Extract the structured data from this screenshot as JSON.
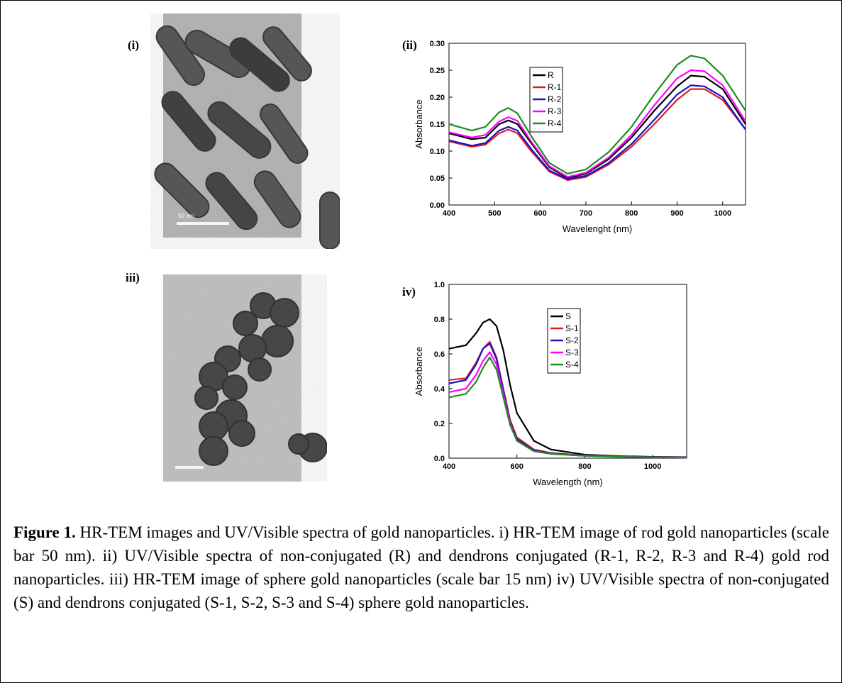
{
  "panel_labels": [
    "(i)",
    "(ii)",
    "iii)",
    "iv)"
  ],
  "scale_bars": [
    "50 nm"
  ],
  "chart_data": [
    {
      "type": "line",
      "xlabel": "Wavelenght (nm)",
      "ylabel": "Absorbance",
      "x": [
        400,
        450,
        480,
        510,
        530,
        550,
        580,
        620,
        660,
        700,
        750,
        800,
        850,
        900,
        930,
        960,
        1000,
        1050
      ],
      "series": [
        {
          "name": "R",
          "color": "#000000",
          "values": [
            0.133,
            0.122,
            0.125,
            0.15,
            0.157,
            0.15,
            0.115,
            0.07,
            0.05,
            0.058,
            0.085,
            0.125,
            0.175,
            0.22,
            0.24,
            0.238,
            0.215,
            0.15
          ]
        },
        {
          "name": "R-1",
          "color": "#e31a1c",
          "values": [
            0.118,
            0.108,
            0.112,
            0.133,
            0.14,
            0.133,
            0.1,
            0.062,
            0.046,
            0.052,
            0.075,
            0.108,
            0.15,
            0.195,
            0.215,
            0.215,
            0.195,
            0.14
          ]
        },
        {
          "name": "R-2",
          "color": "#1414c8",
          "values": [
            0.12,
            0.11,
            0.115,
            0.138,
            0.145,
            0.138,
            0.104,
            0.064,
            0.048,
            0.054,
            0.078,
            0.113,
            0.158,
            0.205,
            0.222,
            0.22,
            0.2,
            0.14
          ]
        },
        {
          "name": "R-3",
          "color": "#ff00ff",
          "values": [
            0.135,
            0.125,
            0.13,
            0.155,
            0.163,
            0.156,
            0.118,
            0.072,
            0.052,
            0.06,
            0.088,
            0.13,
            0.185,
            0.235,
            0.25,
            0.248,
            0.222,
            0.155
          ]
        },
        {
          "name": "R-4",
          "color": "#1e8c1e",
          "values": [
            0.15,
            0.138,
            0.145,
            0.172,
            0.18,
            0.17,
            0.128,
            0.078,
            0.058,
            0.066,
            0.098,
            0.145,
            0.205,
            0.26,
            0.277,
            0.272,
            0.24,
            0.175
          ]
        }
      ],
      "xlim": [
        400,
        1050
      ],
      "ylim": [
        0,
        0.3
      ],
      "xticks": [
        400,
        500,
        600,
        700,
        800,
        900,
        1000
      ],
      "yticks": [
        {
          "value": 0,
          "label": "0.00"
        },
        0.05,
        {
          "value": 0.1,
          "label": "0.10"
        },
        0.15,
        {
          "value": 0.2,
          "label": "0.20"
        },
        0.25,
        {
          "value": 0.3,
          "label": "0.30"
        }
      ],
      "legend": "upper center"
    },
    {
      "type": "line",
      "xlabel": "Wavelength (nm)",
      "ylabel": "Absorbance",
      "x": [
        400,
        450,
        480,
        500,
        520,
        540,
        560,
        580,
        600,
        650,
        700,
        800,
        900,
        1000,
        1100
      ],
      "series": [
        {
          "name": "S",
          "color": "#000000",
          "values": [
            0.63,
            0.65,
            0.72,
            0.78,
            0.8,
            0.76,
            0.62,
            0.42,
            0.26,
            0.1,
            0.05,
            0.02,
            0.012,
            0.008,
            0.006
          ]
        },
        {
          "name": "S-1",
          "color": "#e31a1c",
          "values": [
            0.45,
            0.46,
            0.55,
            0.63,
            0.67,
            0.58,
            0.4,
            0.22,
            0.12,
            0.05,
            0.03,
            0.015,
            0.01,
            0.006,
            0.005
          ]
        },
        {
          "name": "S-2",
          "color": "#1414c8",
          "values": [
            0.43,
            0.45,
            0.54,
            0.63,
            0.66,
            0.57,
            0.39,
            0.21,
            0.11,
            0.045,
            0.028,
            0.015,
            0.01,
            0.006,
            0.005
          ]
        },
        {
          "name": "S-3",
          "color": "#ff00ff",
          "values": [
            0.38,
            0.4,
            0.48,
            0.56,
            0.61,
            0.54,
            0.37,
            0.2,
            0.1,
            0.04,
            0.025,
            0.014,
            0.009,
            0.005,
            0.004
          ]
        },
        {
          "name": "S-4",
          "color": "#1e8c1e",
          "values": [
            0.35,
            0.37,
            0.44,
            0.52,
            0.58,
            0.51,
            0.35,
            0.19,
            0.1,
            0.04,
            0.025,
            0.013,
            0.008,
            0.005,
            0.004
          ]
        }
      ],
      "xlim": [
        400,
        1100
      ],
      "ylim": [
        0,
        1.0
      ],
      "xticks": [
        400,
        600,
        800,
        1000
      ],
      "yticks": [
        {
          "value": 0,
          "label": "0.0"
        },
        0.2,
        0.4,
        0.6,
        0.8,
        {
          "value": 1,
          "label": "1.0"
        }
      ],
      "legend": "upper center"
    }
  ],
  "caption": {
    "label": "Figure 1.",
    "text": " HR-TEM images and UV/Visible spectra of gold nanoparticles. i) HR-TEM image of rod gold nanoparticles (scale bar 50 nm). ii) UV/Visible spectra of non-conjugated (R) and dendrons conjugated (R-1, R-2, R-3 and R-4) gold rod nanoparticles. iii) HR-TEM image of sphere gold nanoparticles (scale bar 15 nm) iv) UV/Visible spectra of non-conjugated (S) and dendrons conjugated (S-1, S-2, S-3 and S-4) sphere gold nanoparticles."
  }
}
